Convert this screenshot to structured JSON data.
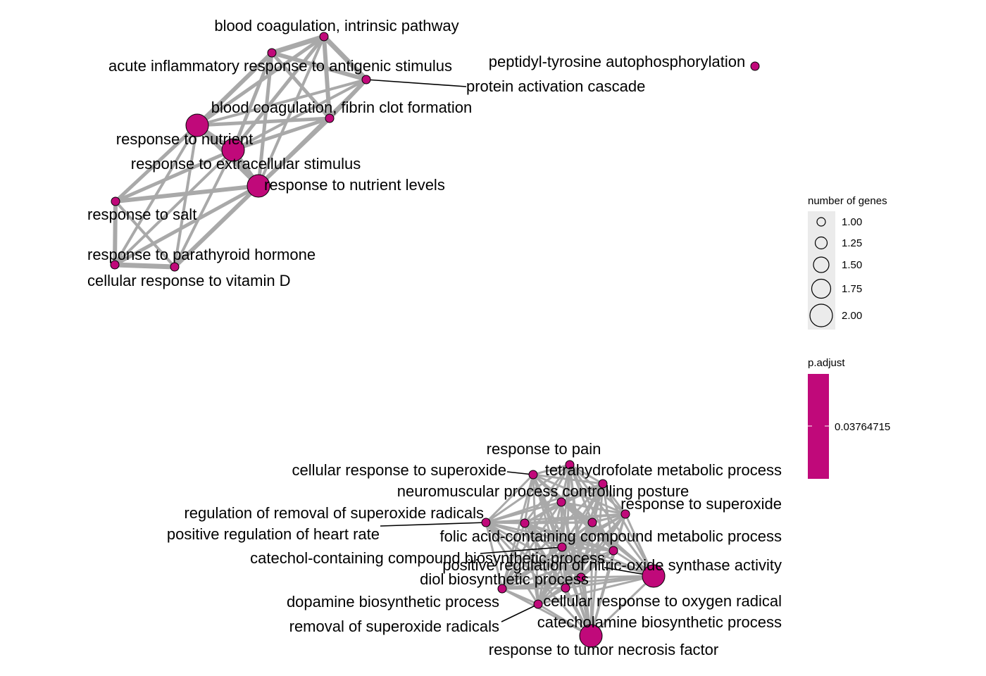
{
  "colors": {
    "node_fill": "#c0097a",
    "edge": "#a9a9a9",
    "legend_box": "#ebebeb"
  },
  "nodes": [
    {
      "id": "intrinsic",
      "label": "blood coagulation, intrinsic pathway",
      "genes": 1
    },
    {
      "id": "acute",
      "label": "acute inflammatory response to antigenic stimulus",
      "genes": 1
    },
    {
      "id": "protein_act",
      "label": "protein activation cascade",
      "genes": 1
    },
    {
      "id": "peptidyl",
      "label": "peptidyl-tyrosine autophosphorylation",
      "genes": 1
    },
    {
      "id": "fibrin",
      "label": "blood coagulation, fibrin clot formation",
      "genes": 1
    },
    {
      "id": "nutrient",
      "label": "response to nutrient",
      "genes": 2
    },
    {
      "id": "extracellular",
      "label": "response to extracellular stimulus",
      "genes": 2
    },
    {
      "id": "nutrient_levels",
      "label": "response to nutrient levels",
      "genes": 2
    },
    {
      "id": "salt",
      "label": "response to salt",
      "genes": 1
    },
    {
      "id": "parathyroid",
      "label": "response to parathyroid hormone",
      "genes": 1
    },
    {
      "id": "vitd",
      "label": "cellular response to vitamin D",
      "genes": 1
    },
    {
      "id": "pain",
      "label": "response to pain",
      "genes": 1
    },
    {
      "id": "cell_superoxide",
      "label": "cellular response to superoxide",
      "genes": 1
    },
    {
      "id": "thf",
      "label": "tetrahydrofolate metabolic process",
      "genes": 1
    },
    {
      "id": "neuromuscular",
      "label": "neuromuscular process controlling posture",
      "genes": 1
    },
    {
      "id": "resp_superoxide",
      "label": "response to superoxide",
      "genes": 1
    },
    {
      "id": "reg_removal",
      "label": "regulation of removal of superoxide radicals",
      "genes": 1
    },
    {
      "id": "pos_heart",
      "label": "positive regulation of heart rate",
      "genes": 1
    },
    {
      "id": "folic",
      "label": "folic acid-containing compound metabolic process",
      "genes": 1
    },
    {
      "id": "catechol_bio",
      "label": "catechol-containing compound biosynthetic process",
      "genes": 1
    },
    {
      "id": "pos_no",
      "label": "positive regulation of nitric-oxide synthase activity",
      "genes": 2
    },
    {
      "id": "diol",
      "label": "diol biosynthetic process",
      "genes": 1
    },
    {
      "id": "dopamine",
      "label": "dopamine biosynthetic process",
      "genes": 1
    },
    {
      "id": "cell_oxygen",
      "label": "cellular response to oxygen radical",
      "genes": 1
    },
    {
      "id": "removal",
      "label": "removal of superoxide radicals",
      "genes": 1
    },
    {
      "id": "catecholamine",
      "label": "catecholamine biosynthetic process",
      "genes": 1
    },
    {
      "id": "tnf",
      "label": "response to tumor necrosis factor",
      "genes": 2
    }
  ],
  "legend": {
    "size_title": "number of genes",
    "size_breaks": [
      {
        "value": 1.0,
        "label": "1.00"
      },
      {
        "value": 1.25,
        "label": "1.25"
      },
      {
        "value": 1.5,
        "label": "1.50"
      },
      {
        "value": 1.75,
        "label": "1.75"
      },
      {
        "value": 2.0,
        "label": "2.00"
      }
    ],
    "color_title": "p.adjust",
    "color_label": "0.03764715"
  }
}
